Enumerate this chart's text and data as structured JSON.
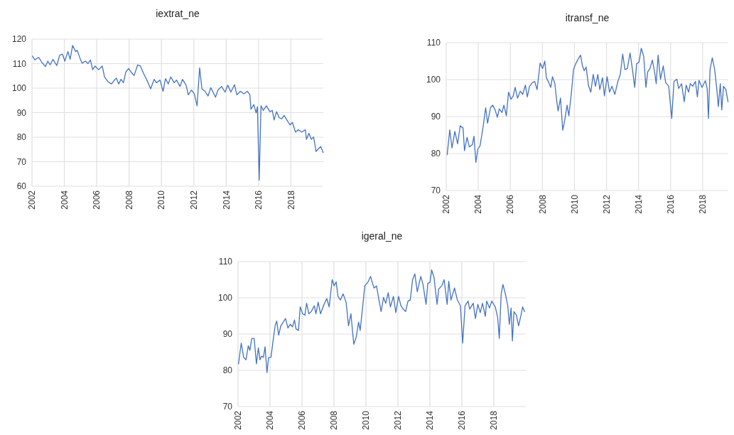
{
  "chart_data": [
    {
      "type": "line",
      "title": "iextrat_ne",
      "color": "#4472c4",
      "grid": true,
      "xlim": [
        2002,
        2020
      ],
      "xticks": [
        2002,
        2004,
        2006,
        2008,
        2010,
        2012,
        2014,
        2016,
        2018
      ],
      "ylim": [
        60,
        120
      ],
      "yticks": [
        60,
        70,
        80,
        90,
        100,
        110,
        120
      ],
      "x": [
        2002.03,
        2002.18,
        2002.32,
        2002.42,
        2002.61,
        2002.83,
        2002.98,
        2003.12,
        2003.3,
        2003.53,
        2003.71,
        2003.88,
        2004.03,
        2004.22,
        2004.36,
        2004.51,
        2004.7,
        2004.8,
        2004.95,
        2005.09,
        2005.31,
        2005.46,
        2005.61,
        2005.75,
        2005.9,
        2006.12,
        2006.34,
        2006.48,
        2006.7,
        2006.92,
        2007.07,
        2007.21,
        2007.36,
        2007.5,
        2007.65,
        2007.8,
        2007.97,
        2008.12,
        2008.31,
        2008.53,
        2008.7,
        2008.89,
        2009.11,
        2009.33,
        2009.55,
        2009.69,
        2009.91,
        2010.1,
        2010.25,
        2010.42,
        2010.57,
        2010.79,
        2010.93,
        2011.15,
        2011.3,
        2011.52,
        2011.66,
        2011.85,
        2012.03,
        2012.2,
        2012.36,
        2012.5,
        2012.69,
        2012.88,
        2013.05,
        2013.2,
        2013.34,
        2013.49,
        2013.71,
        2013.93,
        2014.1,
        2014.29,
        2014.51,
        2014.66,
        2014.88,
        2015.09,
        2015.31,
        2015.46,
        2015.53,
        2015.71,
        2015.85,
        2015.93,
        2016.04,
        2016.15,
        2016.29,
        2016.48,
        2016.7,
        2016.85,
        2016.96,
        2017.11,
        2017.28,
        2017.43,
        2017.58,
        2017.75,
        2017.94,
        2018.09,
        2018.28,
        2018.45,
        2018.67,
        2018.89,
        2018.96,
        2019.11,
        2019.26,
        2019.4,
        2019.55,
        2019.69,
        2019.84,
        2019.99
      ],
      "values": [
        113.1,
        111.5,
        112.2,
        112.5,
        110.5,
        108.8,
        111.0,
        109.5,
        111.7,
        109.2,
        113.4,
        113.9,
        111.0,
        114.9,
        111.8,
        117.4,
        114.9,
        115.4,
        112.5,
        110.2,
        111.0,
        110.0,
        111.5,
        107.5,
        109.0,
        107.5,
        109.0,
        104.6,
        102.6,
        101.7,
        103.1,
        104.1,
        101.7,
        103.6,
        102.2,
        106.6,
        108.0,
        106.6,
        105.1,
        109.5,
        109.0,
        106.1,
        103.1,
        99.7,
        103.6,
        102.2,
        103.3,
        98.7,
        103.9,
        101.7,
        104.6,
        102.2,
        103.3,
        100.7,
        103.6,
        101.2,
        97.3,
        99.2,
        97.7,
        92.8,
        108.3,
        99.7,
        98.7,
        96.8,
        100.2,
        98.2,
        96.3,
        99.2,
        100.7,
        98.4,
        101.2,
        98.4,
        101.4,
        97.3,
        98.7,
        97.7,
        98.7,
        97.3,
        91.4,
        93.3,
        89.9,
        92.4,
        62.5,
        92.8,
        90.9,
        92.8,
        90.4,
        90.9,
        87.0,
        90.4,
        87.9,
        87.5,
        88.9,
        87.0,
        85.0,
        86.0,
        82.1,
        83.0,
        82.1,
        83.0,
        79.1,
        81.6,
        79.1,
        80.1,
        74.2,
        75.2,
        76.2,
        73.7
      ]
    },
    {
      "type": "line",
      "title": "itransf_ne",
      "color": "#4472c4",
      "grid": true,
      "xlim": [
        2002,
        2019.6
      ],
      "xticks": [
        2002,
        2004,
        2006,
        2008,
        2010,
        2012,
        2014,
        2016,
        2018
      ],
      "ylim": [
        70,
        110
      ],
      "yticks": [
        70,
        80,
        90,
        100,
        110
      ],
      "x": [
        2002.06,
        2002.22,
        2002.36,
        2002.54,
        2002.71,
        2002.87,
        2003.05,
        2003.14,
        2003.3,
        2003.44,
        2003.63,
        2003.73,
        2003.85,
        2003.97,
        2004.11,
        2004.29,
        2004.46,
        2004.58,
        2004.76,
        2004.9,
        2005.05,
        2005.19,
        2005.31,
        2005.48,
        2005.6,
        2005.75,
        2005.89,
        2006.04,
        2006.18,
        2006.3,
        2006.45,
        2006.62,
        2006.77,
        2006.94,
        2007.06,
        2007.2,
        2007.38,
        2007.52,
        2007.67,
        2007.86,
        2008.01,
        2008.15,
        2008.25,
        2008.4,
        2008.52,
        2008.63,
        2008.78,
        2008.88,
        2008.98,
        2009.13,
        2009.27,
        2009.39,
        2009.54,
        2009.65,
        2009.83,
        2009.94,
        2010.09,
        2010.24,
        2010.38,
        2010.5,
        2010.61,
        2010.73,
        2010.87,
        2011.02,
        2011.17,
        2011.31,
        2011.46,
        2011.58,
        2011.75,
        2011.87,
        2012.04,
        2012.19,
        2012.34,
        2012.52,
        2012.71,
        2012.86,
        2013.01,
        2013.15,
        2013.3,
        2013.47,
        2013.62,
        2013.76,
        2013.88,
        2014.03,
        2014.17,
        2014.32,
        2014.46,
        2014.57,
        2014.71,
        2014.86,
        2015.0,
        2015.1,
        2015.22,
        2015.37,
        2015.54,
        2015.69,
        2015.88,
        2016.07,
        2016.21,
        2016.39,
        2016.5,
        2016.68,
        2016.85,
        2016.97,
        2017.12,
        2017.23,
        2017.38,
        2017.55,
        2017.67,
        2017.77,
        2017.96,
        2018.17,
        2018.28,
        2018.36,
        2018.46,
        2018.6,
        2018.75,
        2018.87,
        2018.98,
        2019.1,
        2019.19,
        2019.3,
        2019.45,
        2019.58
      ],
      "values": [
        79.7,
        86.4,
        81.5,
        86.0,
        82.6,
        87.5,
        86.9,
        80.8,
        84.4,
        81.8,
        82.4,
        84.7,
        77.6,
        81.2,
        82.1,
        86.9,
        92.4,
        88.2,
        92.4,
        93.1,
        91.8,
        89.8,
        92.1,
        91.1,
        93.1,
        90.2,
        96.6,
        94.7,
        95.6,
        97.9,
        95.0,
        96.9,
        96.0,
        98.5,
        95.3,
        98.2,
        99.2,
        99.5,
        97.3,
        104.5,
        103.0,
        105.0,
        100.5,
        99.2,
        97.9,
        100.8,
        98.9,
        94.7,
        91.5,
        95.0,
        86.3,
        88.9,
        93.1,
        90.2,
        97.3,
        102.7,
        104.4,
        105.6,
        106.6,
        103.7,
        102.4,
        103.4,
        98.5,
        96.6,
        101.4,
        98.2,
        101.4,
        97.3,
        100.5,
        95.6,
        100.8,
        96.6,
        98.2,
        96.0,
        99.5,
        101.4,
        106.9,
        102.7,
        103.0,
        107.2,
        102.7,
        97.9,
        104.3,
        104.7,
        108.5,
        106.3,
        97.9,
        102.1,
        103.0,
        105.3,
        102.1,
        98.9,
        106.6,
        100.1,
        103.7,
        99.2,
        98.2,
        89.5,
        99.5,
        100.1,
        97.6,
        98.9,
        94.0,
        98.5,
        96.6,
        98.9,
        98.2,
        99.5,
        95.3,
        99.8,
        97.9,
        99.7,
        97.6,
        89.5,
        102.7,
        105.9,
        102.7,
        97.9,
        92.7,
        98.9,
        91.8,
        98.2,
        97.3,
        94.0
      ]
    },
    {
      "type": "line",
      "title": "igeral_ne",
      "color": "#4472c4",
      "grid": true,
      "xlim": [
        2002,
        2020
      ],
      "xticks": [
        2002,
        2004,
        2006,
        2008,
        2010,
        2012,
        2014,
        2016,
        2018
      ],
      "ylim": [
        70,
        110
      ],
      "yticks": [
        70,
        80,
        90,
        100,
        110
      ],
      "x": [
        2002.03,
        2002.2,
        2002.35,
        2002.5,
        2002.64,
        2002.74,
        2002.86,
        2003.01,
        2003.15,
        2003.27,
        2003.37,
        2003.47,
        2003.59,
        2003.69,
        2003.81,
        2003.91,
        2004.06,
        2004.2,
        2004.32,
        2004.42,
        2004.54,
        2004.68,
        2004.83,
        2004.97,
        2005.12,
        2005.27,
        2005.41,
        2005.53,
        2005.63,
        2005.78,
        2005.89,
        2006.04,
        2006.18,
        2006.29,
        2006.43,
        2006.58,
        2006.77,
        2006.87,
        2007.01,
        2007.16,
        2007.38,
        2007.55,
        2007.7,
        2007.89,
        2008.01,
        2008.14,
        2008.25,
        2008.4,
        2008.57,
        2008.76,
        2008.91,
        2009.06,
        2009.24,
        2009.39,
        2009.54,
        2009.64,
        2009.78,
        2009.93,
        2010.12,
        2010.29,
        2010.41,
        2010.51,
        2010.66,
        2010.8,
        2010.95,
        2011.1,
        2011.24,
        2011.39,
        2011.53,
        2011.72,
        2011.87,
        2012.04,
        2012.19,
        2012.33,
        2012.48,
        2012.63,
        2012.77,
        2012.92,
        2013.06,
        2013.21,
        2013.43,
        2013.57,
        2013.76,
        2013.87,
        2014.01,
        2014.11,
        2014.26,
        2014.45,
        2014.55,
        2014.74,
        2014.89,
        2015.08,
        2015.18,
        2015.32,
        2015.54,
        2015.72,
        2015.91,
        2016.05,
        2016.2,
        2016.39,
        2016.49,
        2016.71,
        2016.85,
        2017.0,
        2017.15,
        2017.29,
        2017.47,
        2017.55,
        2017.73,
        2017.87,
        2018.09,
        2018.24,
        2018.34,
        2018.46,
        2018.57,
        2018.72,
        2018.87,
        2018.97,
        2019.08,
        2019.16,
        2019.26,
        2019.41,
        2019.55,
        2019.7,
        2019.8,
        2019.92
      ],
      "values": [
        81.8,
        87.5,
        83.6,
        82.9,
        86.8,
        85.5,
        88.8,
        88.8,
        81.8,
        86.2,
        82.9,
        83.9,
        83.6,
        86.5,
        79.4,
        83.5,
        83.6,
        88.4,
        92.3,
        93.6,
        89.7,
        92.3,
        93.3,
        94.3,
        91.7,
        92.7,
        92.0,
        93.9,
        91.4,
        91.0,
        97.5,
        95.6,
        95.2,
        98.5,
        95.6,
        96.2,
        97.8,
        95.6,
        98.8,
        95.6,
        98.2,
        99.8,
        97.5,
        105.0,
        103.3,
        104.4,
        100.4,
        99.4,
        101.1,
        98.8,
        92.3,
        95.6,
        87.2,
        89.1,
        93.3,
        91.0,
        96.9,
        103.3,
        104.3,
        105.9,
        104.0,
        102.7,
        103.3,
        99.8,
        96.2,
        100.1,
        98.5,
        101.4,
        97.5,
        100.4,
        95.9,
        100.4,
        97.8,
        96.9,
        96.2,
        99.1,
        99.4,
        105.0,
        106.6,
        101.7,
        105.9,
        103.7,
        98.2,
        104.0,
        104.3,
        107.7,
        105.6,
        98.2,
        102.4,
        103.3,
        105.0,
        98.2,
        104.6,
        99.4,
        102.7,
        99.4,
        97.8,
        87.5,
        97.8,
        99.1,
        96.9,
        98.5,
        94.3,
        98.2,
        95.9,
        98.5,
        94.9,
        99.1,
        97.2,
        99.1,
        97.5,
        94.6,
        88.8,
        101.1,
        103.7,
        101.1,
        97.8,
        92.7,
        97.2,
        88.1,
        96.2,
        95.2,
        92.3,
        95.2,
        97.5,
        96.2
      ]
    }
  ]
}
